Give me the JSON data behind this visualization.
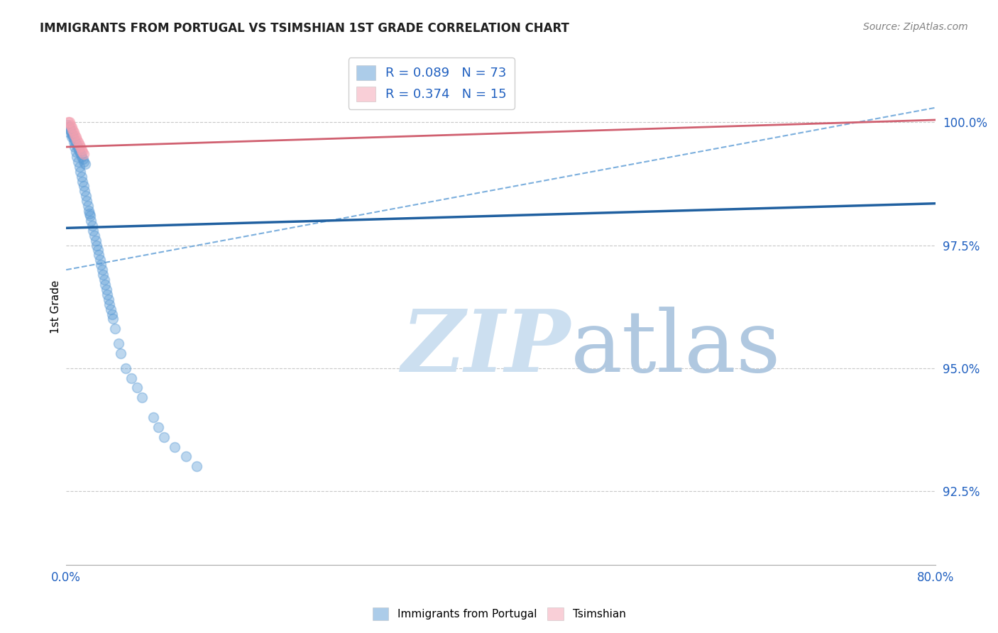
{
  "title": "IMMIGRANTS FROM PORTUGAL VS TSIMSHIAN 1ST GRADE CORRELATION CHART",
  "source": "Source: ZipAtlas.com",
  "ylabel": "1st Grade",
  "ytick_labels": [
    "92.5%",
    "95.0%",
    "97.5%",
    "100.0%"
  ],
  "ytick_values": [
    92.5,
    95.0,
    97.5,
    100.0
  ],
  "xlim": [
    0.0,
    80.0
  ],
  "ylim": [
    91.0,
    101.5
  ],
  "legend_label1": "R = 0.089   N = 73",
  "legend_label2": "R = 0.374   N = 15",
  "legend_footer1": "Immigrants from Portugal",
  "legend_footer2": "Tsimshian",
  "blue_scatter_x": [
    0.2,
    0.3,
    0.4,
    0.5,
    0.6,
    0.7,
    0.8,
    0.9,
    1.0,
    1.1,
    1.2,
    1.3,
    1.4,
    1.5,
    1.6,
    1.7,
    1.8,
    1.9,
    2.0,
    2.1,
    2.2,
    2.3,
    2.4,
    2.5,
    2.6,
    2.7,
    2.8,
    2.9,
    3.0,
    3.1,
    3.2,
    3.3,
    3.4,
    3.5,
    3.6,
    3.7,
    3.8,
    3.9,
    4.0,
    4.1,
    4.2,
    4.3,
    4.5,
    4.8,
    5.0,
    5.5,
    6.0,
    6.5,
    7.0,
    8.0,
    8.5,
    9.0,
    10.0,
    11.0,
    12.0,
    0.15,
    0.25,
    0.35,
    0.45,
    0.55,
    0.65,
    0.75,
    0.85,
    0.95,
    1.05,
    1.15,
    1.25,
    1.35,
    1.45,
    1.55,
    1.65,
    1.75,
    2.15
  ],
  "blue_scatter_y": [
    99.8,
    99.9,
    99.85,
    99.7,
    99.75,
    99.6,
    99.5,
    99.4,
    99.3,
    99.2,
    99.1,
    99.0,
    98.9,
    98.8,
    98.7,
    98.6,
    98.5,
    98.4,
    98.3,
    98.2,
    98.1,
    98.0,
    97.9,
    97.8,
    97.7,
    97.6,
    97.5,
    97.4,
    97.3,
    97.2,
    97.1,
    97.0,
    96.9,
    96.8,
    96.7,
    96.6,
    96.5,
    96.4,
    96.3,
    96.2,
    96.1,
    96.0,
    95.8,
    95.5,
    95.3,
    95.0,
    94.8,
    94.6,
    94.4,
    94.0,
    93.8,
    93.6,
    93.4,
    93.2,
    93.0,
    99.95,
    99.9,
    99.85,
    99.8,
    99.75,
    99.7,
    99.65,
    99.6,
    99.55,
    99.5,
    99.45,
    99.4,
    99.35,
    99.3,
    99.25,
    99.2,
    99.15,
    98.15
  ],
  "pink_scatter_x": [
    0.2,
    0.3,
    0.4,
    0.5,
    0.6,
    0.7,
    0.8,
    0.9,
    1.0,
    1.1,
    1.2,
    1.3,
    1.4,
    1.5,
    1.6
  ],
  "pink_scatter_y": [
    100.0,
    100.0,
    99.95,
    99.9,
    99.85,
    99.8,
    99.75,
    99.7,
    99.65,
    99.6,
    99.55,
    99.5,
    99.45,
    99.4,
    99.35
  ],
  "blue_line_x0": 0.0,
  "blue_line_x1": 80.0,
  "blue_line_y0": 97.85,
  "blue_line_y1": 98.35,
  "pink_line_x0": 0.0,
  "pink_line_x1": 80.0,
  "pink_line_y0": 99.5,
  "pink_line_y1": 100.05,
  "blue_dashed_x0": 0.0,
  "blue_dashed_x1": 80.0,
  "blue_dashed_y0": 97.0,
  "blue_dashed_y1": 100.3,
  "background_color": "#ffffff",
  "blue_color": "#5b9bd5",
  "pink_color": "#f4a0b0",
  "blue_line_color": "#2060a0",
  "pink_line_color": "#d06070",
  "blue_dashed_color": "#5b9bd5",
  "grid_color": "#c8c8c8",
  "title_color": "#202020",
  "source_color": "#808080",
  "axis_label_color": "#2060c0",
  "watermark_color": "#d0e4f5"
}
